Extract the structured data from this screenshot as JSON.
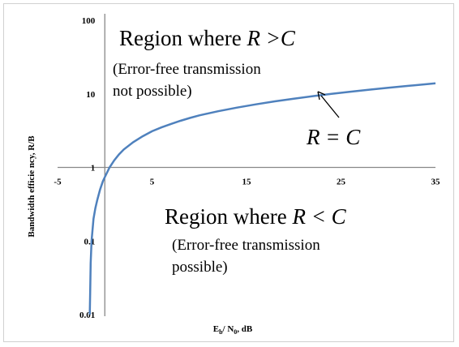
{
  "chart_data": {
    "type": "line",
    "title": "",
    "xlabel_main": "E",
    "xlabel_sub1": "b",
    "xlabel_mid": "/ N",
    "xlabel_sub2": "0",
    "xlabel_tail": ", dB",
    "ylabel": "Bandwidth efficie ncy, R/B",
    "xlim": [
      -5,
      35
    ],
    "ylim": [
      0.01,
      100
    ],
    "y_scale": "log",
    "x_ticks": [
      -5,
      5,
      15,
      25,
      35
    ],
    "x_tick_labels": [
      "-5",
      "5",
      "15",
      "25",
      "35"
    ],
    "y_ticks": [
      0.01,
      0.1,
      1,
      10,
      100
    ],
    "y_tick_labels": [
      "0.01",
      "0.1",
      "1",
      "10",
      "100"
    ],
    "axis_crossing_y": 1,
    "grid": false,
    "line_color": "#4f81bd",
    "series": [
      {
        "x": [
          -1.59,
          -1.55,
          -1.5,
          -1.4,
          -1.2,
          -1.0,
          -0.8,
          -0.5,
          -0.2,
          0.0,
          0.5,
          1.0,
          1.5,
          2.0,
          3.0,
          4.0,
          5.0,
          6.0,
          7.0,
          8.0,
          9.0,
          10.0,
          12.0,
          14.0,
          16.0,
          18.0,
          20.0,
          22.0,
          24.0,
          26.0,
          28.0,
          30.0,
          32.0,
          34.0,
          35.0
        ],
        "y": [
          0.01,
          0.02,
          0.05,
          0.1,
          0.2,
          0.28,
          0.36,
          0.5,
          0.65,
          0.74,
          1.0,
          1.25,
          1.5,
          1.75,
          2.2,
          2.65,
          3.1,
          3.5,
          3.9,
          4.3,
          4.7,
          5.1,
          5.8,
          6.5,
          7.2,
          7.9,
          8.6,
          9.3,
          10.0,
          10.7,
          11.4,
          12.1,
          12.8,
          13.5,
          13.9
        ]
      }
    ],
    "annotations": {
      "region_above_prefix": "Region where ",
      "region_above_expr": "R >C",
      "above_note_line1": "(Error-free transmission",
      "above_note_line2": "not possible)",
      "curve_label": "R = C",
      "region_below_prefix": "Region where ",
      "region_below_expr": "R < C",
      "below_note_line1": "(Error-free transmission",
      "below_note_line2": "possible)"
    }
  }
}
